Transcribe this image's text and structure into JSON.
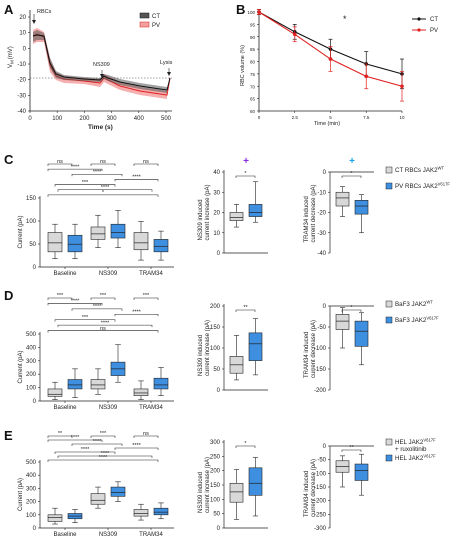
{
  "colors": {
    "gray_box": "#d8d8d8",
    "blue_box": "#3f8fe0",
    "ct_line": "#111111",
    "pv_line": "#e02020",
    "purple_sig": "#8a2be2",
    "cyan_sig": "#1aa0e6"
  },
  "panel_letters": {
    "a": "A",
    "b": "B",
    "c": "C",
    "d": "D",
    "e": "E"
  },
  "panel_a": {
    "ylabel": "V",
    "ylabel_sub": "M",
    "ylabel_unit": "(mV)",
    "xlabel": "Time (s)",
    "annotations": {
      "rbcs": "RBCs",
      "ns309": "NS309",
      "lysis": "Lysis"
    },
    "legend": [
      "CT",
      "PV"
    ],
    "yticks": [
      "-40",
      "-30",
      "-20",
      "-10",
      "0",
      "10",
      "20"
    ],
    "xticks": [
      "0",
      "100",
      "200",
      "300",
      "400",
      "500"
    ]
  },
  "chart_data": [
    {
      "type": "line",
      "panel": "B",
      "xlabel": "Time (min)",
      "ylabel": "RBC volume (%)",
      "xlim": [
        0,
        10
      ],
      "ylim": [
        60,
        100
      ],
      "xticks": [
        "0",
        "2.5",
        "5",
        "7.5",
        "10"
      ],
      "yticks": [
        "60",
        "65",
        "70",
        "75",
        "80",
        "85",
        "90",
        "95",
        "100"
      ],
      "annotation": "*",
      "series": [
        {
          "name": "CT",
          "x": [
            0,
            2.5,
            5,
            7.5,
            10
          ],
          "y": [
            100,
            92,
            85,
            79,
            75
          ],
          "err": [
            1,
            3,
            4,
            5,
            6
          ]
        },
        {
          "name": "PV",
          "x": [
            0,
            2.5,
            5,
            7.5,
            10
          ],
          "y": [
            100,
            91,
            81,
            74,
            70
          ],
          "err": [
            1,
            3,
            5,
            5,
            6
          ]
        }
      ]
    }
  ],
  "row_c": {
    "main": {
      "ylabel": "Current (pA)",
      "yticks": [
        "0",
        "50",
        "100",
        "150"
      ],
      "ymax": 150,
      "categories": [
        "Baseline",
        "NS309",
        "TRAM34"
      ],
      "sigs": [
        "ns",
        "ns",
        "ns",
        "****",
        "****",
        "****",
        "***",
        "****",
        "*"
      ]
    },
    "inc": {
      "ylabel": [
        "NS309 induced",
        "current increase (pA)"
      ],
      "yticks": [
        "0",
        "10",
        "20",
        "30",
        "40"
      ],
      "sig": "*",
      "marker": "+"
    },
    "dec": {
      "ylabel": [
        "TRAM34 induced",
        "current decrease (pA)"
      ],
      "yticks": [
        "0",
        "-10",
        "-20",
        "-30",
        "-40"
      ],
      "sig": "*",
      "marker": "+"
    },
    "legend": [
      {
        "text": "CT RBCs JAK2",
        "sup": "WT"
      },
      {
        "text": "PV RBCs JAK2",
        "sup": "V617F"
      }
    ]
  },
  "row_d": {
    "main": {
      "ylabel": "Current (pA)",
      "yticks": [
        "0",
        "100",
        "200",
        "300",
        "400",
        "500"
      ],
      "ymax": 500,
      "categories": [
        "Baseline",
        "NS309",
        "TRAM34"
      ],
      "sigs": [
        "***",
        "***",
        "***",
        "****",
        "****",
        "****",
        "***",
        "****",
        "ns"
      ]
    },
    "inc": {
      "ylabel": [
        "NS309 induced",
        "current increase (pA)"
      ],
      "yticks": [
        "0",
        "50",
        "100",
        "150",
        "200"
      ],
      "sig": "**"
    },
    "dec": {
      "ylabel": [
        "TRAM34 induced",
        "current decrease (pA)"
      ],
      "yticks": [
        "0",
        "-50",
        "-100",
        "-150",
        "-200"
      ],
      "sig": "*"
    },
    "legend": [
      {
        "text": "BaF3 JAK2",
        "sup": "WT"
      },
      {
        "text": "BaF3 JAK2",
        "sup": "V617F"
      }
    ]
  },
  "row_e": {
    "main": {
      "ylabel": "Current (pA)",
      "yticks": [
        "0",
        "100",
        "200",
        "300",
        "400",
        "500"
      ],
      "ymax": 500,
      "categories": [
        "Baseline",
        "NS309",
        "TRAM34"
      ],
      "sigs": [
        "**",
        "***",
        "ns",
        "****",
        "****",
        "****",
        "****",
        "****",
        "****"
      ]
    },
    "inc": {
      "ylabel": [
        "NS309 induced",
        "current increase (pA)"
      ],
      "yticks": [
        "0",
        "50",
        "100",
        "150",
        "200",
        "250",
        "300"
      ],
      "sig": "*"
    },
    "dec": {
      "ylabel": [
        "TRAM34 induced",
        "current decrease (pA)"
      ],
      "yticks": [
        "0",
        "-50",
        "-100",
        "-150",
        "-200",
        "-250",
        "-300"
      ],
      "sig": "**"
    },
    "legend": [
      {
        "text": "HEL JAK2",
        "sup": "V617F",
        "line2": "+ ruxolitinib"
      },
      {
        "text": "HEL JAK2",
        "sup": "V617F"
      }
    ]
  }
}
